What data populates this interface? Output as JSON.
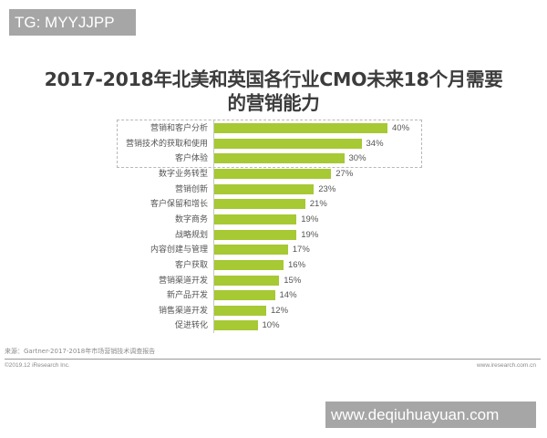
{
  "watermarks": {
    "top_left": "TG: MYYJJPP",
    "bottom_right": "www.deqiuhuayuan.com"
  },
  "header": {
    "title_line1": "2017-2018年北美和英国各行业CMO未来18个月需要",
    "title_line2": "的营销能力"
  },
  "footer": {
    "source": "来源：Gartner-2017-2018年市场营销技术调查报告",
    "copyright": "©2019.12 iResearch Inc.",
    "site": "www.iresearch.com.cn"
  },
  "colors": {
    "bar": "#a6c934",
    "title": "#3c3c3c",
    "watermark_bg": "#a6a6a6"
  },
  "chart_data": {
    "type": "bar",
    "orientation": "horizontal",
    "title": "2017-2018年北美和英国各行业CMO未来18个月需要的营销能力",
    "xlabel": "",
    "ylabel": "",
    "grid": false,
    "legend": null,
    "highlighted_top_n": 3,
    "categories": [
      "营销和客户分析",
      "营销技术的获取和使用",
      "客户体验",
      "数字业务转型",
      "营销创新",
      "客户保留和增长",
      "数字商务",
      "战略规划",
      "内容创建与管理",
      "客户获取",
      "营销渠道开发",
      "新产品开发",
      "销售渠道开发",
      "促进转化"
    ],
    "values": [
      40,
      34,
      30,
      27,
      23,
      21,
      19,
      19,
      17,
      16,
      15,
      14,
      12,
      10
    ],
    "labels": [
      "40%",
      "34%",
      "30%",
      "27%",
      "23%",
      "21%",
      "19%",
      "19%",
      "17%",
      "16%",
      "15%",
      "14%",
      "12%",
      "10%"
    ],
    "unit": "%",
    "xlim": [
      0,
      40
    ]
  }
}
